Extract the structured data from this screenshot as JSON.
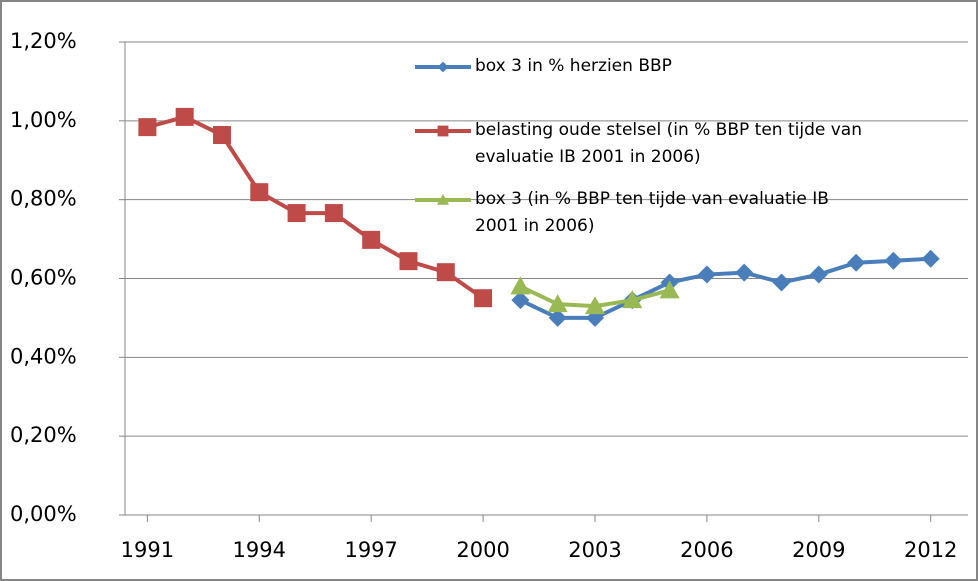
{
  "chart_data": {
    "type": "line",
    "x": [
      1991,
      1992,
      1993,
      1994,
      1995,
      1996,
      1997,
      1998,
      1999,
      2000,
      2001,
      2002,
      2003,
      2004,
      2005,
      2006,
      2007,
      2008,
      2009,
      2010,
      2011,
      2012
    ],
    "series": [
      {
        "name": "box 3 in % herzien BBP",
        "color": "#4a7ebb",
        "marker": "diamond",
        "values": [
          null,
          null,
          null,
          null,
          null,
          null,
          null,
          null,
          null,
          null,
          0.545,
          0.5,
          0.5,
          0.545,
          0.59,
          0.61,
          0.615,
          0.59,
          0.61,
          0.64,
          0.645,
          0.65
        ]
      },
      {
        "name": "belasting oude stelsel (in % BBP ten tijde van evaluatie IB 2001 in 2006)",
        "color": "#be4b48",
        "marker": "square",
        "values": [
          0.984,
          1.01,
          0.964,
          0.819,
          0.766,
          0.766,
          0.698,
          0.644,
          0.616,
          0.55,
          null,
          null,
          null,
          null,
          null,
          null,
          null,
          null,
          null,
          null,
          null,
          null
        ]
      },
      {
        "name": "box 3 (in % BBP ten tijde van evaluatie IB 2001 in 2006)",
        "color": "#98b954",
        "marker": "triangle",
        "values": [
          null,
          null,
          null,
          null,
          null,
          null,
          null,
          null,
          null,
          null,
          0.58,
          0.535,
          0.53,
          0.545,
          0.57,
          null,
          null,
          null,
          null,
          null,
          null,
          null
        ]
      }
    ],
    "xlim": [
      1990.4,
      2013
    ],
    "xticks": [
      1991,
      1994,
      1997,
      2000,
      2003,
      2006,
      2009,
      2012
    ],
    "ylim": [
      0,
      1.2
    ],
    "yticks": [
      {
        "value": 0,
        "label": "0,00%"
      },
      {
        "value": 0.2,
        "label": "0,20%"
      },
      {
        "value": 0.4,
        "label": "0,40%"
      },
      {
        "value": 0.6,
        "label": "0,60%"
      },
      {
        "value": 0.8,
        "label": "0,80%"
      },
      {
        "value": 1.0,
        "label": "1,00%"
      },
      {
        "value": 1.2,
        "label": "1,20%"
      }
    ],
    "grid": true
  }
}
